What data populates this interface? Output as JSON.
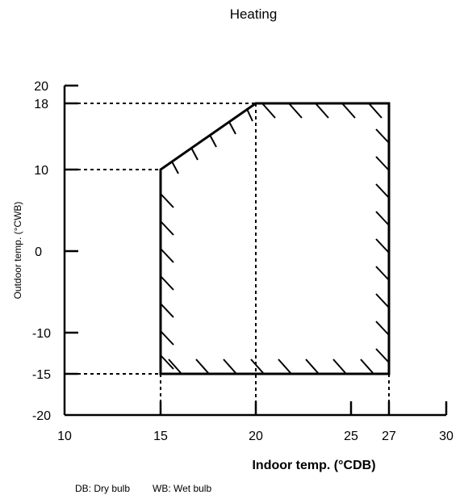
{
  "title": "Heating",
  "x_axis": {
    "label": "Indoor temp. (°CDB)",
    "ticks": [
      "10",
      "15",
      "20",
      "25",
      "27",
      "30"
    ],
    "range": [
      10,
      30
    ]
  },
  "y_axis": {
    "label": "Outdoor temp. (°CWB)",
    "ticks": [
      "20",
      "18",
      "10",
      "0",
      "-10",
      "-15",
      "-20"
    ],
    "range": [
      -20,
      20
    ]
  },
  "operating_range": {
    "polygon": [
      {
        "indoor": 15,
        "outdoor": -15
      },
      {
        "indoor": 15,
        "outdoor": 10
      },
      {
        "indoor": 20,
        "outdoor": 18
      },
      {
        "indoor": 27,
        "outdoor": 18
      },
      {
        "indoor": 27,
        "outdoor": -15
      }
    ]
  },
  "notes": {
    "db": "DB: Dry bulb",
    "wb": "WB: Wet bulb"
  }
}
